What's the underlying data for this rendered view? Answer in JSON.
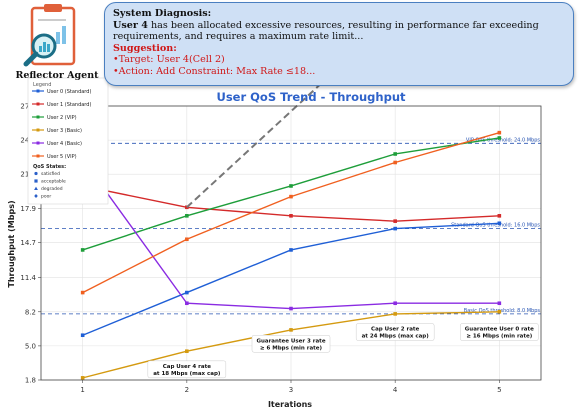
{
  "diagnosis": {
    "heading": "System Diagnosis:",
    "lead": "User 4",
    "text": " has been allocated excessive resources, resulting in performance far exceeding requirements, and requires a maximum rate limit...",
    "suggestion_heading": "Suggestion:",
    "target": "•Target: User 4(Cell 2)",
    "action": "•Action: Add Constraint: Max Rate ≤18..."
  },
  "agent": {
    "label": "Reflector Agent",
    "icon": "clipboard-chart-magnifier-icon"
  },
  "chart_data": {
    "type": "line",
    "title": "User QoS Trend - Throughput",
    "xlabel": "Iterations",
    "ylabel": "Throughput (Mbps)",
    "x": [
      1,
      2,
      3,
      4,
      5
    ],
    "xlim": [
      0.6,
      5.4
    ],
    "ylim": [
      1.8,
      27.5
    ],
    "yticks": [
      1.8,
      5.0,
      8.2,
      11.4,
      14.7,
      17.9,
      21.1,
      24.3,
      27.5
    ],
    "grid": true,
    "legend_position": "top-left",
    "legend_header": "Legend",
    "series": [
      {
        "name": "User 0 (Standard)",
        "color": "#1f5fd6",
        "values": [
          6.0,
          10.0,
          14.0,
          16.0,
          16.5
        ]
      },
      {
        "name": "User 1 (Standard)",
        "color": "#d42a2a",
        "values": [
          20.0,
          18.0,
          17.2,
          16.7,
          17.2
        ]
      },
      {
        "name": "User 2 (VIP)",
        "color": "#1e9e3a",
        "values": [
          14.0,
          17.2,
          20.0,
          23.0,
          24.5
        ]
      },
      {
        "name": "User 3 (Basic)",
        "color": "#d49a10",
        "values": [
          2.0,
          4.5,
          6.5,
          8.0,
          8.2
        ]
      },
      {
        "name": "User 4 (Basic)",
        "color": "#8a2be2",
        "values": [
          22.5,
          9.0,
          8.5,
          9.0,
          9.0
        ]
      },
      {
        "name": "User 5 (VIP)",
        "color": "#f06020",
        "values": [
          10.0,
          15.0,
          19.0,
          22.2,
          25.0
        ]
      }
    ],
    "projection": {
      "x": [
        2,
        3.5
      ],
      "values": [
        18.0,
        31.5
      ],
      "color": "#777777"
    },
    "qos_states_title": "QoS States:",
    "qos_states": [
      {
        "label": "satisfied",
        "marker": "circle"
      },
      {
        "label": "acceptable",
        "marker": "square"
      },
      {
        "label": "degraded",
        "marker": "triangle"
      },
      {
        "label": "poor",
        "marker": "diamond"
      }
    ],
    "thresholds": [
      {
        "label": "VIP QoS threshold: 24.0 Mbps",
        "value": 24.0
      },
      {
        "label": "Standard QoS threshold: 16.0 Mbps",
        "value": 16.0
      },
      {
        "label": "Basic QoS threshold: 8.0 Mbps",
        "value": 8.0
      }
    ],
    "annotations": [
      {
        "lines": [
          "Cap User 4 rate",
          "at 18 Mbps (max cap)"
        ],
        "x": 2.0,
        "y": 2.8
      },
      {
        "lines": [
          "Guarantee User 3 rate",
          "≥ 6 Mbps (min rate)"
        ],
        "x": 3.0,
        "y": 5.2
      },
      {
        "lines": [
          "Cap User 2 rate",
          "at 24 Mbps (max cap)"
        ],
        "x": 4.0,
        "y": 6.3
      },
      {
        "lines": [
          "Guarantee User 0 rate",
          "≥ 16 Mbps (min rate)"
        ],
        "x": 5.0,
        "y": 6.3
      }
    ]
  }
}
